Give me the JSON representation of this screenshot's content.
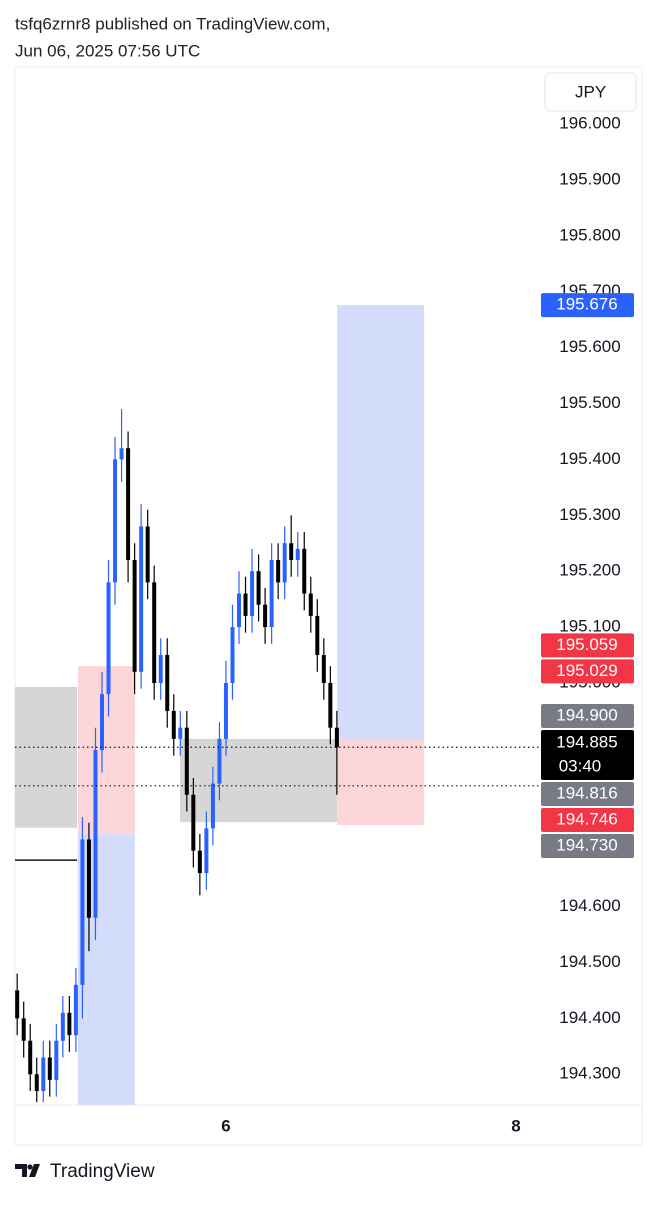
{
  "header": {
    "line1": "tsfq6zrnr8 published on TradingView.com,",
    "line2": "Jun 06, 2025 07:56 UTC"
  },
  "footer": {
    "brand": "TradingView"
  },
  "chart_data": {
    "type": "candlestick",
    "currency_button": "JPY",
    "up_color": "#2962ff",
    "down_color": "#000000",
    "x": [
      4.56,
      4.605,
      4.65,
      4.695,
      4.74,
      4.785,
      4.83,
      4.875,
      4.92,
      4.965,
      5.01,
      5.055,
      5.1,
      5.145,
      5.19,
      5.235,
      5.28,
      5.325,
      5.37,
      5.415,
      5.46,
      5.505,
      5.55,
      5.595,
      5.64,
      5.685,
      5.73,
      5.775,
      5.82,
      5.865,
      5.91,
      5.955,
      6.0,
      6.045,
      6.09,
      6.135,
      6.18,
      6.225,
      6.27,
      6.315,
      6.36,
      6.405,
      6.45,
      6.495,
      6.54,
      6.585,
      6.63,
      6.675,
      6.72,
      6.765
    ],
    "open": [
      194.45,
      194.4,
      194.36,
      194.3,
      194.27,
      194.33,
      194.29,
      194.36,
      194.41,
      194.37,
      194.46,
      194.72,
      194.58,
      194.88,
      194.98,
      195.18,
      195.4,
      195.42,
      195.22,
      195.02,
      195.28,
      195.18,
      195.0,
      195.05,
      194.95,
      194.9,
      194.92,
      194.8,
      194.7,
      194.66,
      194.74,
      194.82,
      194.9,
      195.0,
      195.1,
      195.16,
      195.12,
      195.2,
      195.14,
      195.1,
      195.22,
      195.18,
      195.25,
      195.22,
      195.24,
      195.16,
      195.12,
      195.05,
      195.0,
      194.92
    ],
    "high": [
      194.48,
      194.43,
      194.39,
      194.33,
      194.36,
      194.36,
      194.39,
      194.44,
      194.44,
      194.49,
      194.76,
      194.75,
      194.92,
      195.02,
      195.22,
      195.44,
      195.49,
      195.45,
      195.25,
      195.32,
      195.31,
      195.21,
      195.08,
      195.08,
      194.98,
      194.95,
      194.95,
      194.83,
      194.73,
      194.77,
      194.85,
      194.93,
      195.04,
      195.14,
      195.2,
      195.19,
      195.24,
      195.23,
      195.17,
      195.25,
      195.25,
      195.28,
      195.3,
      195.27,
      195.27,
      195.19,
      195.15,
      195.08,
      195.03,
      194.95
    ],
    "low": [
      194.37,
      194.33,
      194.27,
      194.25,
      194.25,
      194.26,
      194.26,
      194.33,
      194.34,
      194.34,
      194.4,
      194.52,
      194.54,
      194.84,
      194.94,
      195.14,
      195.36,
      195.18,
      194.98,
      194.99,
      195.15,
      194.97,
      194.97,
      194.92,
      194.87,
      194.87,
      194.77,
      194.67,
      194.62,
      194.63,
      194.71,
      194.79,
      194.87,
      194.97,
      195.07,
      195.09,
      195.09,
      195.11,
      195.07,
      195.07,
      195.15,
      195.15,
      195.19,
      195.19,
      195.13,
      195.09,
      195.02,
      194.97,
      194.89,
      194.8
    ],
    "close": [
      194.4,
      194.36,
      194.3,
      194.27,
      194.33,
      194.29,
      194.36,
      194.41,
      194.37,
      194.46,
      194.72,
      194.58,
      194.88,
      194.98,
      195.18,
      195.4,
      195.42,
      195.22,
      195.02,
      195.28,
      195.18,
      195.0,
      195.05,
      194.95,
      194.9,
      194.92,
      194.8,
      194.7,
      194.66,
      194.74,
      194.82,
      194.9,
      195.0,
      195.1,
      195.16,
      195.12,
      195.2,
      195.14,
      195.1,
      195.22,
      195.18,
      195.25,
      195.22,
      195.24,
      195.16,
      195.12,
      195.05,
      195.0,
      194.92,
      194.885
    ],
    "xlim": [
      4.545,
      8.166
    ],
    "xticks": [
      6,
      8
    ],
    "ylim": [
      194.245,
      196.102
    ],
    "yticks": [
      {
        "value": 194.3,
        "label": "194.300"
      },
      {
        "value": 194.4,
        "label": "194.400"
      },
      {
        "value": 194.5,
        "label": "194.500"
      },
      {
        "value": 194.6,
        "label": "194.600"
      },
      {
        "value": 194.7,
        "label": "194.700"
      },
      {
        "value": 194.8,
        "label": "194.800"
      },
      {
        "value": 194.9,
        "label": "194.900"
      },
      {
        "value": 195.0,
        "label": "195.000"
      },
      {
        "value": 195.1,
        "label": "195.100"
      },
      {
        "value": 195.2,
        "label": "195.200"
      },
      {
        "value": 195.3,
        "label": "195.300"
      },
      {
        "value": 195.4,
        "label": "195.400"
      },
      {
        "value": 195.5,
        "label": "195.500"
      },
      {
        "value": 195.6,
        "label": "195.600"
      },
      {
        "value": 195.7,
        "label": "195.700"
      },
      {
        "value": 195.8,
        "label": "195.800"
      },
      {
        "value": 195.9,
        "label": "195.900"
      },
      {
        "value": 196.0,
        "label": "196.000"
      }
    ],
    "zones": [
      {
        "x": [
          4.545,
          4.973
        ],
        "y": [
          194.993,
          194.741
        ],
        "color": "#d6d6d6"
      },
      {
        "x": [
          5.683,
          6.766
        ],
        "y": [
          194.9,
          194.751
        ],
        "color": "#d6d6d6"
      },
      {
        "x": [
          4.979,
          5.372
        ],
        "y": [
          195.03,
          194.73
        ],
        "color": "#fcd5d8"
      },
      {
        "x": [
          4.979,
          5.372
        ],
        "y": [
          194.73,
          194.245
        ],
        "color": "#d3ddfb"
      },
      {
        "x": [
          6.767,
          7.367
        ],
        "y": [
          195.676,
          194.9
        ],
        "color": "#d3ddfb"
      },
      {
        "x": [
          6.767,
          7.367
        ],
        "y": [
          194.9,
          194.746
        ],
        "color": "#fcd5d8"
      }
    ],
    "lines": [
      {
        "value": 194.683,
        "x": [
          4.545,
          4.973
        ],
        "style": "solid"
      },
      {
        "value": 194.885,
        "x": [
          4.545,
          8.166
        ],
        "style": "dotted"
      },
      {
        "value": 194.816,
        "x": [
          4.545,
          8.166
        ],
        "style": "dotted"
      }
    ],
    "price_labels": [
      {
        "value": 195.676,
        "label": "195.676",
        "color": "#2962ff"
      },
      {
        "value": 195.059,
        "label": "195.059",
        "color": "#f23645"
      },
      {
        "value": 195.029,
        "label": "195.029",
        "color": "#f23645"
      },
      {
        "value": 194.9,
        "label": "194.900",
        "color": "#787b86"
      },
      {
        "value": 194.885,
        "label": "194.885",
        "color": "#000000",
        "countdown": "03:40"
      },
      {
        "value": 194.816,
        "label": "194.816",
        "color": "#787b86"
      },
      {
        "value": 194.746,
        "label": "194.746",
        "color": "#f23645"
      },
      {
        "value": 194.73,
        "label": "194.730",
        "color": "#787b86"
      }
    ]
  }
}
